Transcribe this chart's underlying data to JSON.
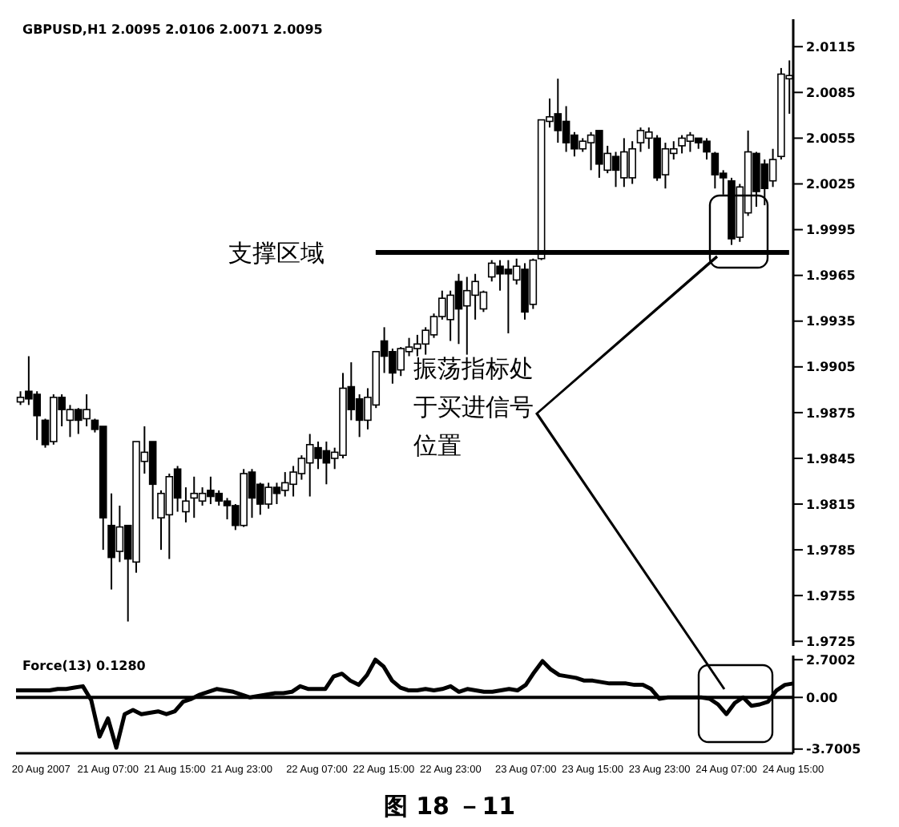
{
  "chart_data": [
    {
      "type": "candlestick",
      "title": "GBPUSD,H1 2.0095 2.0106 2.0071 2.0095",
      "color": "#000000",
      "categories": [
        null,
        null,
        null,
        null,
        null,
        null,
        null,
        null,
        null,
        null,
        null,
        null,
        null,
        null,
        null,
        null,
        null,
        null,
        null,
        null,
        null,
        null,
        null,
        null,
        null,
        null,
        null,
        null,
        null,
        null,
        null,
        null,
        null,
        null,
        null,
        null,
        null,
        null,
        null,
        null,
        null,
        null,
        null,
        null,
        null,
        null,
        null,
        null,
        null,
        null,
        null,
        null,
        null,
        null,
        null,
        null,
        null,
        null,
        null,
        null,
        null,
        null,
        null,
        null,
        null,
        null,
        null,
        null,
        null,
        null,
        null,
        null,
        null,
        null,
        null,
        null,
        null,
        null,
        null,
        null,
        null,
        null,
        null,
        null,
        null,
        null,
        null,
        null,
        null,
        null,
        null,
        null,
        null,
        null
      ],
      "ohlc": [
        [
          1.9882,
          1.9889,
          1.988,
          1.9885
        ],
        [
          1.9889,
          1.9912,
          1.988,
          1.9884
        ],
        [
          1.9887,
          1.9889,
          1.9857,
          1.9873
        ],
        [
          1.987,
          1.9871,
          1.9852,
          1.9854
        ],
        [
          1.9856,
          1.9887,
          1.9854,
          1.9885
        ],
        [
          1.9885,
          1.9887,
          1.9866,
          1.9877
        ],
        [
          1.987,
          1.988,
          1.9859,
          1.9877
        ],
        [
          1.9877,
          1.9878,
          1.9861,
          1.987
        ],
        [
          1.9871,
          1.9887,
          1.9866,
          1.9877
        ],
        [
          1.987,
          1.9871,
          1.9862,
          1.9864
        ],
        [
          1.9866,
          1.9866,
          1.9785,
          1.9806
        ],
        [
          1.9801,
          1.9822,
          1.9759,
          1.978
        ],
        [
          1.9784,
          1.9814,
          1.9777,
          1.98
        ],
        [
          1.9801,
          1.9801,
          1.9738,
          1.9779
        ],
        [
          1.9777,
          1.9856,
          1.977,
          1.9856
        ],
        [
          1.9843,
          1.9866,
          1.9835,
          1.9849
        ],
        [
          1.9856,
          1.9856,
          1.9805,
          1.9828
        ],
        [
          1.9806,
          1.9824,
          1.9785,
          1.9822
        ],
        [
          1.9808,
          1.9835,
          1.9779,
          1.9833
        ],
        [
          1.9838,
          1.984,
          1.981,
          1.9819
        ],
        [
          1.981,
          1.9826,
          1.9803,
          1.9817
        ],
        [
          1.9819,
          1.9833,
          1.9806,
          1.9822
        ],
        [
          1.9817,
          1.9826,
          1.9814,
          1.9822
        ],
        [
          1.9824,
          1.9833,
          1.9815,
          1.982
        ],
        [
          1.9822,
          1.9824,
          1.9814,
          1.9817
        ],
        [
          1.9817,
          1.9819,
          1.9805,
          1.9814
        ],
        [
          1.9814,
          1.9815,
          1.9798,
          1.9801
        ],
        [
          1.9801,
          1.9838,
          1.98,
          1.9835
        ],
        [
          1.9836,
          1.9838,
          1.9806,
          1.9819
        ],
        [
          1.9828,
          1.9829,
          1.9808,
          1.9815
        ],
        [
          1.9815,
          1.9829,
          1.9812,
          1.9826
        ],
        [
          1.9826,
          1.9829,
          1.9815,
          1.9822
        ],
        [
          1.9824,
          1.9836,
          1.982,
          1.9829
        ],
        [
          1.9828,
          1.984,
          1.982,
          1.9836
        ],
        [
          1.9835,
          1.9847,
          1.9831,
          1.9845
        ],
        [
          1.9842,
          1.9861,
          1.982,
          1.9854
        ],
        [
          1.9852,
          1.9856,
          1.9838,
          1.9845
        ],
        [
          1.985,
          1.9856,
          1.9828,
          1.9842
        ],
        [
          1.9845,
          1.9852,
          1.9838,
          1.9849
        ],
        [
          1.9847,
          1.9901,
          1.9845,
          1.9891
        ],
        [
          1.9892,
          1.9908,
          1.987,
          1.9877
        ],
        [
          1.9884,
          1.9887,
          1.9859,
          1.987
        ],
        [
          1.987,
          1.9891,
          1.9864,
          1.9885
        ],
        [
          1.988,
          1.9915,
          1.9878,
          1.9915
        ],
        [
          1.9922,
          1.9931,
          1.9901,
          1.9912
        ],
        [
          1.9915,
          1.9917,
          1.9894,
          1.9901
        ],
        [
          1.9903,
          1.9918,
          1.9899,
          1.9917
        ],
        [
          1.9915,
          1.9924,
          1.9912,
          1.9918
        ],
        [
          1.9917,
          1.9926,
          1.9912,
          1.992
        ],
        [
          1.992,
          1.9931,
          1.9913,
          1.9929
        ],
        [
          1.9926,
          1.994,
          1.9924,
          1.9938
        ],
        [
          1.9938,
          1.9955,
          1.9936,
          1.995
        ],
        [
          1.9936,
          1.9955,
          1.9922,
          1.9952
        ],
        [
          1.9961,
          1.9966,
          1.992,
          1.9943
        ],
        [
          1.9945,
          1.9964,
          1.9913,
          1.9955
        ],
        [
          1.9952,
          1.9966,
          1.9936,
          1.9961
        ],
        [
          1.9943,
          1.9955,
          1.9941,
          1.9954
        ],
        [
          1.9964,
          1.9975,
          1.9961,
          1.9973
        ],
        [
          1.9971,
          1.9975,
          1.9955,
          1.9966
        ],
        [
          1.9969,
          1.9975,
          1.9927,
          1.9966
        ],
        [
          1.9962,
          1.9976,
          1.9959,
          1.9971
        ],
        [
          1.9969,
          1.9973,
          1.9936,
          1.9941
        ],
        [
          1.9946,
          1.9976,
          1.9943,
          1.9975
        ],
        [
          1.9976,
          2.0067,
          1.9975,
          2.0067
        ],
        [
          2.0066,
          2.0081,
          2.0062,
          2.0069
        ],
        [
          2.0071,
          2.0094,
          2.0052,
          2.006
        ],
        [
          2.0066,
          2.0076,
          2.0046,
          2.0052
        ],
        [
          2.0057,
          2.0059,
          2.0043,
          2.0048
        ],
        [
          2.0048,
          2.0055,
          2.0046,
          2.0053
        ],
        [
          2.0052,
          2.0059,
          2.0034,
          2.0057
        ],
        [
          2.006,
          2.006,
          2.0029,
          2.0038
        ],
        [
          2.0034,
          2.005,
          2.0032,
          2.0045
        ],
        [
          2.0043,
          2.0046,
          2.0023,
          2.0034
        ],
        [
          2.0029,
          2.0055,
          2.0023,
          2.0046
        ],
        [
          2.0029,
          2.0053,
          2.0025,
          2.0048
        ],
        [
          2.0052,
          2.0062,
          2.0046,
          2.006
        ],
        [
          2.0055,
          2.0062,
          2.0048,
          2.0059
        ],
        [
          2.0055,
          2.0057,
          2.0027,
          2.0029
        ],
        [
          2.0031,
          2.0052,
          2.0022,
          2.0048
        ],
        [
          2.0045,
          2.0053,
          2.0041,
          2.0048
        ],
        [
          2.005,
          2.0057,
          2.0045,
          2.0055
        ],
        [
          2.0053,
          2.0059,
          2.0046,
          2.0057
        ],
        [
          2.0055,
          2.0055,
          2.0048,
          2.0052
        ],
        [
          2.0053,
          2.0055,
          2.0041,
          2.0046
        ],
        [
          2.0045,
          2.0046,
          2.0022,
          2.0031
        ],
        [
          2.0032,
          2.0034,
          2.0018,
          2.0029
        ],
        [
          2.0027,
          2.0029,
          1.9985,
          1.9989
        ],
        [
          1.999,
          2.0025,
          1.9987,
          2.0023
        ],
        [
          2.0006,
          2.006,
          2.0004,
          2.0046
        ],
        [
          2.0045,
          2.0046,
          2.001,
          2.002
        ],
        [
          2.0038,
          2.0041,
          2.0011,
          2.0022
        ],
        [
          2.0027,
          2.0048,
          2.0023,
          2.0041
        ],
        [
          2.0043,
          2.0101,
          2.0041,
          2.0097
        ],
        [
          2.0095,
          2.0106,
          2.0071,
          2.0095
        ]
      ],
      "ylim": [
        1.9722,
        2.0133
      ],
      "yticks": [
        2.0115,
        2.0085,
        2.0055,
        2.0025,
        1.9995,
        1.9965,
        1.9935,
        1.9905,
        1.9875,
        1.9845,
        1.9815,
        1.9785,
        1.9755,
        1.9725
      ],
      "tick_labels": "y",
      "ref_lines": [
        {
          "axis": "y",
          "value": 1.998,
          "label": "支撑区域"
        }
      ],
      "annotations": [
        "振荡指标处于买进信号位置"
      ]
    },
    {
      "type": "line",
      "title": "Force(13) 0.1280",
      "color": "#000000",
      "categories": [
        null,
        null,
        null,
        "20 Aug 2007",
        null,
        null,
        null,
        null,
        null,
        null,
        null,
        "21 Aug 07:00",
        null,
        null,
        null,
        null,
        null,
        null,
        null,
        "21 Aug 15:00",
        null,
        null,
        null,
        null,
        null,
        null,
        null,
        "21 Aug 23:00",
        null,
        null,
        null,
        null,
        null,
        null,
        null,
        null,
        "22 Aug 07:00",
        null,
        null,
        null,
        null,
        null,
        null,
        null,
        "22 Aug 15:00",
        null,
        null,
        null,
        null,
        null,
        null,
        null,
        "22 Aug 23:00",
        null,
        null,
        null,
        null,
        null,
        null,
        null,
        null,
        "23 Aug 07:00",
        null,
        null,
        null,
        null,
        null,
        null,
        null,
        "23 Aug 15:00",
        null,
        null,
        null,
        null,
        null,
        null,
        null,
        "23 Aug 23:00",
        null,
        null,
        null,
        null,
        null,
        null,
        null,
        "24 Aug 07:00",
        null,
        null,
        null,
        null,
        null,
        null,
        null,
        "24 Aug 15:00"
      ],
      "values": [
        0.5,
        0.5,
        0.5,
        0.5,
        0.5,
        0.6,
        0.6,
        0.7,
        0.8,
        -0.2,
        -2.8,
        -1.5,
        -3.6,
        -1.2,
        -0.9,
        -1.2,
        -1.1,
        -1.0,
        -1.2,
        -1.0,
        -0.3,
        -0.1,
        0.2,
        0.4,
        0.6,
        0.5,
        0.4,
        0.2,
        0.0,
        0.1,
        0.2,
        0.3,
        0.3,
        0.4,
        0.8,
        0.6,
        0.6,
        0.6,
        1.5,
        1.7,
        1.2,
        0.9,
        1.6,
        2.7002,
        2.2,
        1.2,
        0.7,
        0.5,
        0.5,
        0.6,
        0.5,
        0.6,
        0.8,
        0.4,
        0.6,
        0.5,
        0.4,
        0.4,
        0.5,
        0.6,
        0.5,
        0.9,
        1.8,
        2.6,
        2.0,
        1.6,
        1.5,
        1.4,
        1.2,
        1.2,
        1.1,
        1.0,
        1.0,
        1.0,
        0.9,
        0.9,
        0.6,
        -0.1,
        0.0,
        0.0,
        0.0,
        0.0,
        0.0,
        -0.1,
        -0.5,
        -1.2,
        -0.4,
        0.0,
        -0.6,
        -0.5,
        -0.3,
        0.5,
        0.9,
        1.0
      ],
      "ylim": [
        -4.0,
        3.0
      ],
      "yticks": [
        2.7002,
        {
          "value": 0,
          "label": "0.00"
        },
        -3.7005
      ],
      "ref_lines": [
        {
          "axis": "y",
          "value": 0
        }
      ],
      "annotations": [
        "图 18 －11"
      ]
    }
  ]
}
